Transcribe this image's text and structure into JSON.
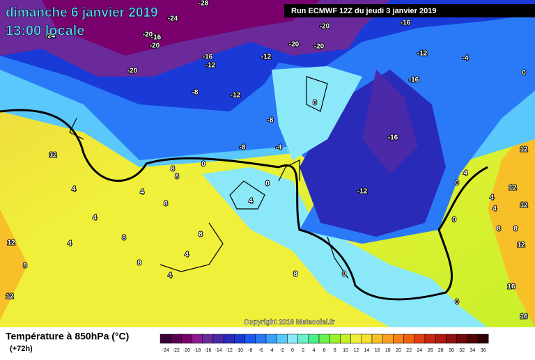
{
  "header": {
    "title": "dimanche 6 janvier 2019",
    "subtitle": "13:00 locale",
    "run": "Run ECMWF 12Z du jeudi 3 janvier 2019",
    "copyright": "Copyright 2019 Meteociel.fr"
  },
  "legend": {
    "title": "Température à 850hPa (°C)",
    "lead": "(+72h)",
    "ticks": [
      -24,
      -22,
      -20,
      -18,
      -16,
      -14,
      -12,
      -10,
      -8,
      -6,
      -4,
      -2,
      0,
      2,
      4,
      6,
      8,
      10,
      12,
      14,
      16,
      18,
      20,
      22,
      24,
      26,
      28,
      30,
      32,
      34,
      36
    ],
    "colors": [
      "#3a0033",
      "#5a0050",
      "#7a006e",
      "#8c1a8c",
      "#6a2a9a",
      "#4a2aa8",
      "#2a2ab8",
      "#1a3ad8",
      "#1a5af0",
      "#2a7af8",
      "#3aa0fa",
      "#5ac8fa",
      "#8ae8f8",
      "#6af0c8",
      "#4af08a",
      "#6af04a",
      "#9af02a",
      "#c8f02a",
      "#f0f03a",
      "#f8e030",
      "#f8c028",
      "#f8a020",
      "#f88018",
      "#f06010",
      "#e04010",
      "#c82810",
      "#b01810",
      "#901010",
      "#700808",
      "#500404",
      "#300000"
    ]
  },
  "map": {
    "labels": [
      -28,
      -24,
      -24,
      -20,
      -16,
      -20,
      -20,
      -16,
      -12,
      -12,
      -20,
      -20,
      -20,
      -16,
      -12,
      -4,
      -16,
      0,
      -8,
      -12,
      -8,
      -8,
      -4,
      0,
      -16,
      -12,
      0,
      8,
      8,
      4,
      4,
      12,
      8,
      4,
      4,
      8,
      8,
      4,
      8,
      4,
      8,
      12,
      12,
      0,
      4,
      8,
      0,
      0,
      0,
      0,
      4,
      4,
      8,
      8,
      12,
      12,
      16,
      16,
      12,
      4,
      12
    ]
  }
}
